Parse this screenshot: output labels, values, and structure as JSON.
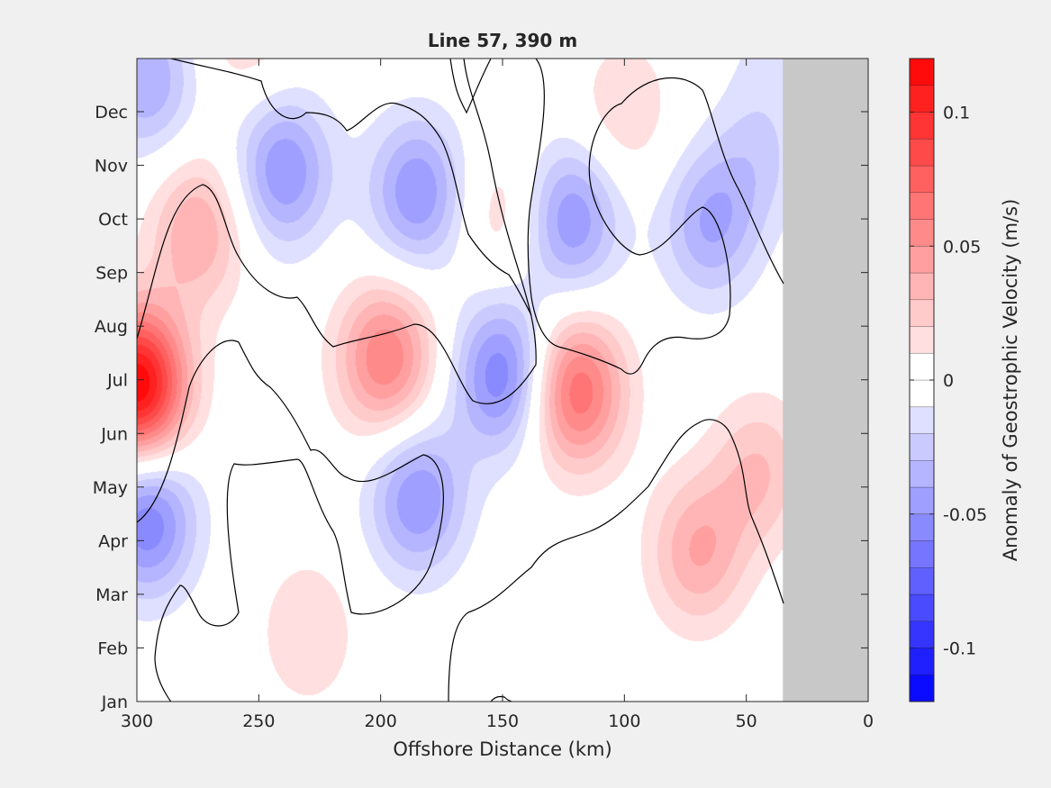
{
  "chart_data": {
    "type": "heatmap",
    "subtype": "filled-contour",
    "title": "Line 57, 390 m",
    "xlabel": "Offshore Distance (km)",
    "ylabel": "",
    "x_reversed": true,
    "xlim": [
      0,
      300
    ],
    "xticks": [
      300,
      250,
      200,
      150,
      100,
      50,
      0
    ],
    "yticks": [
      "Jan",
      "Feb",
      "Mar",
      "Apr",
      "May",
      "Jun",
      "Jul",
      "Aug",
      "Sep",
      "Oct",
      "Nov",
      "Dec"
    ],
    "colorbar": {
      "label": "Anomaly of Geostrophic Velocity (m/s)",
      "clim": [
        -0.12,
        0.12
      ],
      "level_step": 0.01,
      "ticks": [
        -0.1,
        -0.05,
        0,
        0.05,
        0.1
      ],
      "low_color": "#0000ff",
      "mid_color": "#ffffff",
      "high_color": "#ff0000"
    },
    "no_data_region": {
      "x_range_km": [
        0,
        35
      ],
      "color": "#c8c8c8"
    },
    "zero_contour_color": "#000000",
    "anomaly_centers": [
      {
        "x": 300,
        "month": 5.9,
        "value": 0.12
      },
      {
        "x": 275,
        "month": 8.8,
        "value": 0.04
      },
      {
        "x": 296,
        "month": 3.4,
        "value": -0.06
      },
      {
        "x": 296,
        "month": 11.6,
        "value": -0.04
      },
      {
        "x": 240,
        "month": 9.9,
        "value": -0.05
      },
      {
        "x": 185,
        "month": 9.5,
        "value": -0.05
      },
      {
        "x": 198,
        "month": 6.4,
        "value": 0.06
      },
      {
        "x": 150,
        "month": 6.1,
        "value": -0.06
      },
      {
        "x": 120,
        "month": 5.8,
        "value": 0.07
      },
      {
        "x": 122,
        "month": 9.0,
        "value": -0.05
      },
      {
        "x": 65,
        "month": 8.9,
        "value": -0.04
      },
      {
        "x": 185,
        "month": 3.8,
        "value": -0.05
      },
      {
        "x": 70,
        "month": 2.8,
        "value": 0.04
      },
      {
        "x": 45,
        "month": 4.3,
        "value": 0.03
      },
      {
        "x": 100,
        "month": 11.0,
        "value": 0.02
      },
      {
        "x": 150,
        "month": 9.1,
        "value": 0.02
      },
      {
        "x": 45,
        "month": 10.2,
        "value": -0.02
      },
      {
        "x": 230,
        "month": 1.3,
        "value": 0.02
      },
      {
        "x": 255,
        "month": 12.6,
        "value": 0.02
      },
      {
        "x": 40,
        "month": 12.3,
        "value": -0.01
      }
    ]
  }
}
